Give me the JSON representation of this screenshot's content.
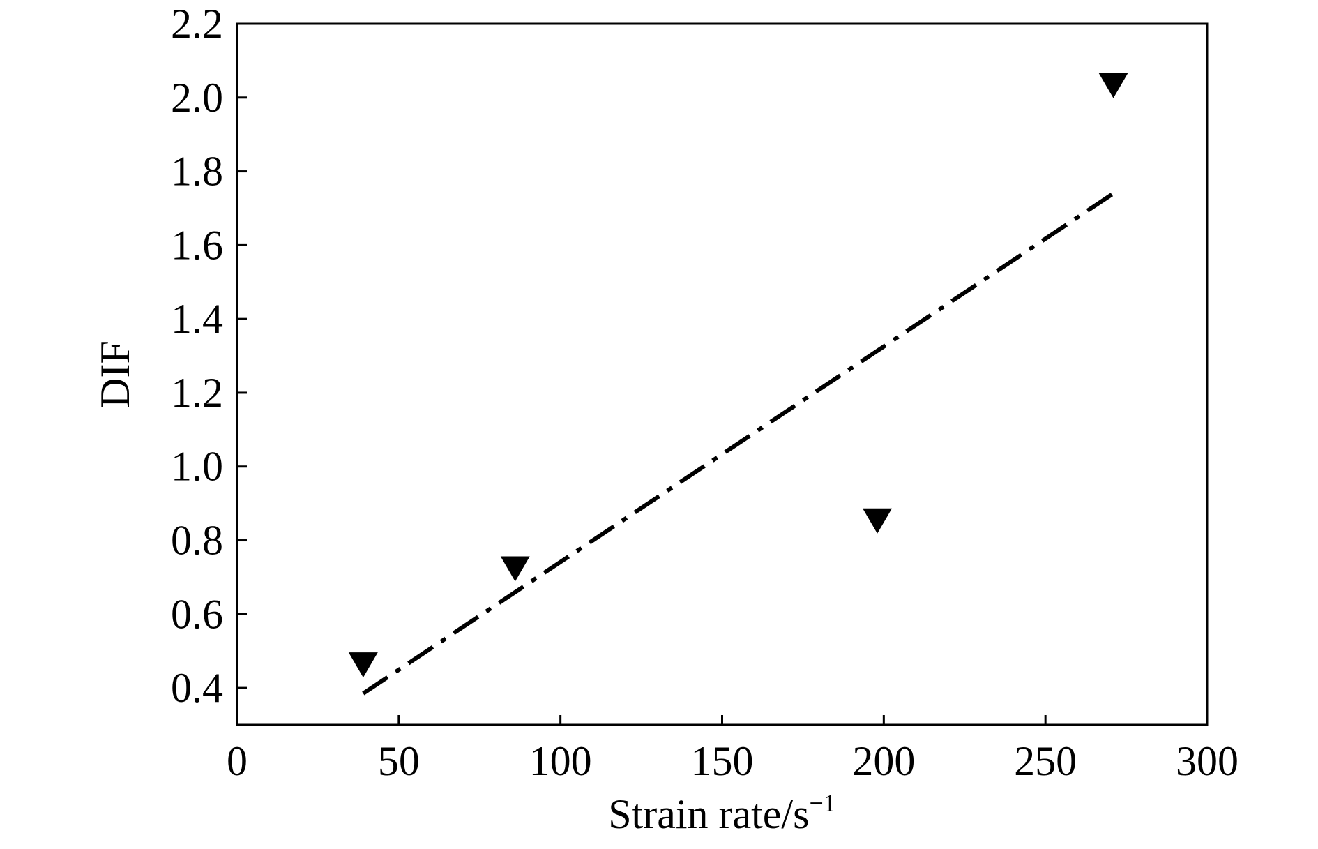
{
  "chart_data": {
    "type": "scatter",
    "title": "",
    "xlabel": "Strain rate/s",
    "xlabel_superscript": "−1",
    "ylabel": "DIF",
    "xlim": [
      0,
      300
    ],
    "ylim": [
      0.3,
      2.2
    ],
    "x_ticks": [
      0,
      50,
      100,
      150,
      200,
      250,
      300
    ],
    "x_tick_labels": [
      "0",
      "50",
      "100",
      "150",
      "200",
      "250",
      "300"
    ],
    "y_ticks": [
      0.4,
      0.6,
      0.8,
      1.0,
      1.2,
      1.4,
      1.6,
      1.8,
      2.0,
      2.2
    ],
    "y_tick_labels": [
      "0.4",
      "0.6",
      "0.8",
      "1.0",
      "1.2",
      "1.4",
      "1.6",
      "1.8",
      "2.0",
      "2.2"
    ],
    "grid": false,
    "legend": "none",
    "series": [
      {
        "marker": "triangle-down",
        "color": "#000000",
        "points": [
          {
            "x": 39,
            "y": 0.47
          },
          {
            "x": 86,
            "y": 0.73
          },
          {
            "x": 198,
            "y": 0.86
          },
          {
            "x": 271,
            "y": 2.04
          }
        ]
      }
    ],
    "fit_line": {
      "style": "dash-dot",
      "color": "#000000",
      "points": [
        {
          "x": 39,
          "y": 0.385
        },
        {
          "x": 271,
          "y": 1.74
        }
      ]
    }
  }
}
